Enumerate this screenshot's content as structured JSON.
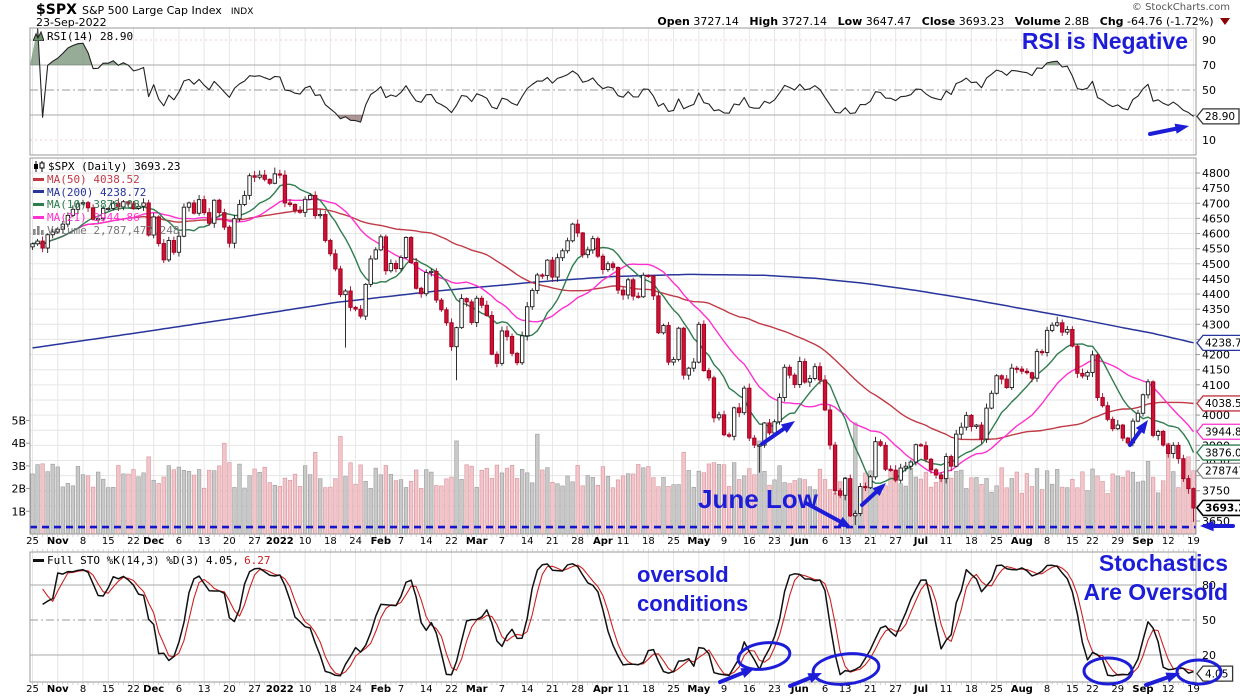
{
  "header": {
    "symbol": "$SPX",
    "name": "S&P 500 Large Cap Index",
    "exchange": "INDX",
    "date": "23-Sep-2022",
    "copyright": "© StockCharts.com",
    "quote": {
      "open_label": "Open",
      "open": "3727.14",
      "high_label": "High",
      "high": "3727.14",
      "low_label": "Low",
      "low": "3647.47",
      "close_label": "Close",
      "close": "3693.23",
      "volume_label": "Volume",
      "volume": "2.8B",
      "chg_label": "Chg",
      "chg": "-64.76 (-1.72%)"
    }
  },
  "rsi_panel": {
    "legend": "RSI(14) 28.90",
    "value_box": "28.90",
    "axis_labels": [
      90,
      70,
      50,
      10
    ],
    "lines": {
      "overbought": 70,
      "mid": 50,
      "oversold": 30
    },
    "annotation": "RSI is Negative"
  },
  "main_panel": {
    "legend_symbol": "$SPX (Daily) 3693.23",
    "legend_ma50": "MA(50) 4038.52",
    "legend_ma200": "MA(200) 4238.72",
    "legend_ma10": "MA(10) 3876.08",
    "legend_ma21": "MA(21) 3944.86",
    "legend_volume": "Volume 2,787,477,248",
    "annotation_june_low": "June Low",
    "price_axis": {
      "min": 3650,
      "max": 4800,
      "step": 50,
      "hidden": [
        4250,
        4050,
        3950,
        3800,
        3700
      ]
    },
    "volume_axis": [
      "5B",
      "4B",
      "3B",
      "2B",
      "1B"
    ],
    "value_boxes": [
      {
        "text": "4238.72",
        "color": "#28359b",
        "price": 4238.72
      },
      {
        "text": "4038.52",
        "color": "#c03a46",
        "price": 4038.52
      },
      {
        "text": "3944.86",
        "color": "#ff30d0",
        "price": 3944.86
      },
      {
        "text": "3876.08",
        "color": "#2f7d4f",
        "price": 3876.08
      },
      {
        "text": "2787477",
        "color": "#888888",
        "volumeB": 2.787
      },
      {
        "text": "3693.23",
        "color": "#000000",
        "price": 3693.23,
        "bold": true
      }
    ],
    "support_price": 3630
  },
  "stoch_panel": {
    "legend_k": "Full STO %K(14,3) %D(3) 4.05,",
    "legend_d": "6.27",
    "value_box": "4.05",
    "axis_labels": [
      80,
      50,
      20
    ],
    "annotation_left_1": "oversold",
    "annotation_left_2": "conditions",
    "annotation_right_1": "Stochastics",
    "annotation_right_2": "Are Oversold"
  },
  "x_axis": {
    "labels": [
      "25",
      "Nov",
      "8",
      "15",
      "22",
      "Dec",
      "6",
      "13",
      "20",
      "27",
      "2022",
      "10",
      "18",
      "24",
      "Feb",
      "7",
      "14",
      "22",
      "Mar",
      "7",
      "14",
      "21",
      "28",
      "Apr",
      "11",
      "18",
      "25",
      "May",
      "9",
      "16",
      "23",
      "Jun",
      "6",
      "13",
      "21",
      "27",
      "Jul",
      "11",
      "18",
      "25",
      "Aug",
      "8",
      "15",
      "22",
      "29",
      "Sep",
      "12",
      "19"
    ],
    "bold": [
      "Nov",
      "Dec",
      "2022",
      "Feb",
      "Mar",
      "Apr",
      "May",
      "Jun",
      "Jul",
      "Aug",
      "Sep"
    ]
  },
  "chart_data": {
    "type": "candlestick+indicators",
    "title": "$SPX S&P 500 Large Cap Index - Daily",
    "span": "25-Oct-2021 to 23-Sep-2022",
    "closes": [
      4566,
      4575,
      4552,
      4596,
      4605,
      4614,
      4631,
      4660,
      4680,
      4698,
      4702,
      4685,
      4647,
      4649,
      4683,
      4683,
      4700,
      4688,
      4705,
      4698,
      4683,
      4690,
      4701,
      4595,
      4655,
      4567,
      4513,
      4577,
      4538,
      4591,
      4687,
      4701,
      4667,
      4712,
      4669,
      4634,
      4710,
      4669,
      4621,
      4568,
      4649,
      4696,
      4726,
      4791,
      4786,
      4793,
      4779,
      4766,
      4797,
      4793,
      4701,
      4696,
      4677,
      4670,
      4713,
      4726,
      4659,
      4663,
      4577,
      4533,
      4483,
      4398,
      4410,
      4356,
      4350,
      4327,
      4432,
      4516,
      4546,
      4589,
      4477,
      4501,
      4484,
      4521,
      4587,
      4504,
      4419,
      4401,
      4471,
      4475,
      4380,
      4348,
      4305,
      4226,
      4289,
      4385,
      4374,
      4306,
      4386,
      4363,
      4329,
      4201,
      4171,
      4278,
      4260,
      4204,
      4173,
      4262,
      4358,
      4412,
      4463,
      4461,
      4512,
      4456,
      4520,
      4543,
      4576,
      4631,
      4602,
      4530,
      4546,
      4583,
      4525,
      4481,
      4500,
      4488,
      4413,
      4397,
      4447,
      4393,
      4391,
      4462,
      4459,
      4394,
      4272,
      4296,
      4175,
      4184,
      4287,
      4132,
      4155,
      4175,
      4300,
      4147,
      4123,
      3991,
      4001,
      3935,
      3930,
      4024,
      4008,
      4089,
      3924,
      3901,
      3901,
      3974,
      3941,
      3978,
      4058,
      4158,
      4132,
      4101,
      4177,
      4109,
      4121,
      4160,
      4116,
      4017,
      3901,
      3750,
      3735,
      3790,
      3667,
      3675,
      3764,
      3760,
      3796,
      3912,
      3900,
      3821,
      3818,
      3785,
      3825,
      3831,
      3845,
      3902,
      3899,
      3854,
      3819,
      3802,
      3790,
      3863,
      3831,
      3937,
      3960,
      3999,
      3962,
      3967,
      3921,
      4023,
      4072,
      4130,
      4119,
      4091,
      4155,
      4152,
      4145,
      4140,
      4122,
      4210,
      4207,
      4280,
      4297,
      4305,
      4274,
      4283,
      4228,
      4138,
      4129,
      4141,
      4199,
      4058,
      4031,
      3986,
      3955,
      3967,
      3924,
      3908,
      3980,
      4006,
      4067,
      4110,
      3933,
      3946,
      3901,
      3873,
      3900,
      3856,
      3790,
      3757,
      3693
    ],
    "low_overrides": {
      "62": 4223,
      "84": 4115,
      "92": 4158,
      "144": 3810,
      "163": 3637,
      "230": 3647
    },
    "high_overrides": {
      "48": 4818,
      "203": 4325
    },
    "volume_overrides": {
      "23": 3.4,
      "38": 4.0,
      "56": 3.6,
      "61": 4.3,
      "84": 4.1,
      "100": 4.4,
      "129": 3.6,
      "144": 4.1,
      "163": 4.9,
      "221": 3.2,
      "225": 4.0,
      "229": 3.4,
      "230": 2.787
    },
    "ma200_keypoints": [
      [
        0,
        4222
      ],
      [
        20,
        4270
      ],
      [
        40,
        4320
      ],
      [
        60,
        4372
      ],
      [
        80,
        4410
      ],
      [
        100,
        4440
      ],
      [
        115,
        4458
      ],
      [
        130,
        4465
      ],
      [
        145,
        4462
      ],
      [
        155,
        4452
      ],
      [
        165,
        4435
      ],
      [
        175,
        4412
      ],
      [
        185,
        4385
      ],
      [
        195,
        4355
      ],
      [
        205,
        4325
      ],
      [
        215,
        4292
      ],
      [
        222,
        4270
      ],
      [
        230,
        4239
      ]
    ],
    "indicators": {
      "rsi_period": 14,
      "stoch": [
        14,
        3,
        3
      ],
      "ma_periods": [
        10,
        21,
        50,
        200
      ]
    },
    "last": {
      "close": 3693.23,
      "rsi": 28.9,
      "stoch_k": 4.05,
      "stoch_d": 6.27,
      "ma10": 3876.08,
      "ma21": 3944.86,
      "ma50": 4038.52,
      "ma200": 4238.72,
      "volume": 2787477248,
      "june_low": 3636.87
    }
  },
  "colors": {
    "candle_up_fill": "#ffffff",
    "candle_up_stroke": "#1a1a1a",
    "candle_dn_fill": "#cc1133",
    "candle_dn_stroke": "#a00022",
    "vol_up_fill": "#c9c9c9",
    "vol_up_stroke": "#9a9a9a",
    "vol_dn_fill": "#f3c4c9",
    "vol_dn_stroke": "#d3959c",
    "ma10": "#2f7d4f",
    "ma21": "#ff30d0",
    "ma50": "#c03a46",
    "ma200": "#28359b",
    "rsi_line": "#222222",
    "stoch_k": "#111111",
    "stoch_d": "#cc2222",
    "annotation_blue": "#1d1dd8",
    "support_blue": "#1414cc",
    "grid": "#e6e6e6",
    "panel_border": "#999999",
    "fill_overbought": "#5d7f5d",
    "fill_oversold": "#7f5d5d"
  }
}
